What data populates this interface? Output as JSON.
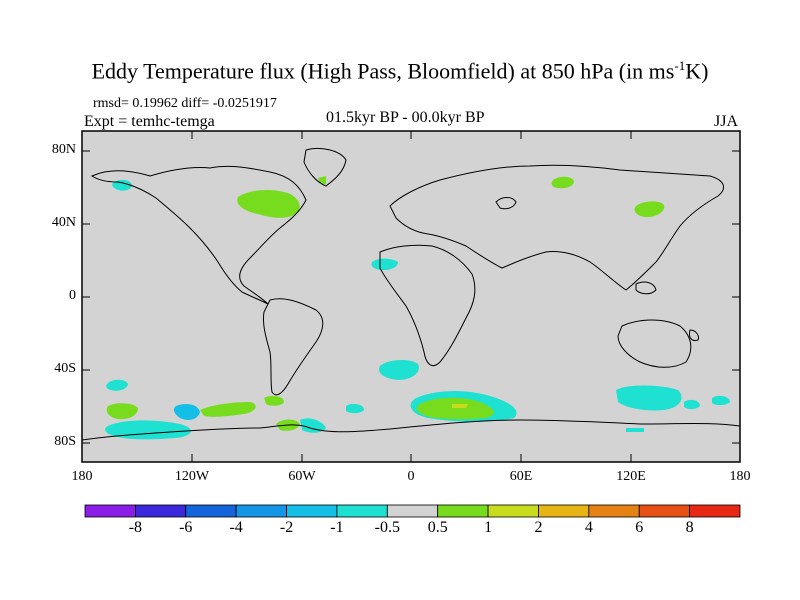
{
  "title": {
    "main": "Eddy Temperature flux (High Pass, Bloomfield) at 850 hPa (in ms",
    "sup": "-1",
    "tail": "K)"
  },
  "stats": "rmsd= 0.19962 diff= -0.0251917",
  "experiment": "Expt = temhc-temga",
  "period": "01.5kyr BP - 00.0kyr BP",
  "season": "JJA",
  "axes": {
    "lat_ticks": [
      "80N",
      "40N",
      "0",
      "40S",
      "80S"
    ],
    "lon_ticks": [
      "180",
      "120W",
      "60W",
      "0",
      "60E",
      "120E",
      "180"
    ]
  },
  "colorbar": {
    "labels": [
      "-8",
      "-6",
      "-4",
      "-2",
      "-1",
      "-0.5",
      "0.5",
      "1",
      "2",
      "4",
      "6",
      "8"
    ],
    "colors": [
      "#8a1ee6",
      "#3c28dc",
      "#1464dc",
      "#1496e6",
      "#14bee6",
      "#1ee1d2",
      "#d3d3d3",
      "#78dc1e",
      "#c8dc1e",
      "#e6b414",
      "#e68214",
      "#e65014",
      "#e62814"
    ]
  },
  "colors": {
    "ocean_land": "#d3d3d3",
    "positive_1": "#78dc1e",
    "positive_2": "#c8dc1e",
    "negative_1": "#1ee1d2",
    "negative_2": "#14bee6"
  }
}
